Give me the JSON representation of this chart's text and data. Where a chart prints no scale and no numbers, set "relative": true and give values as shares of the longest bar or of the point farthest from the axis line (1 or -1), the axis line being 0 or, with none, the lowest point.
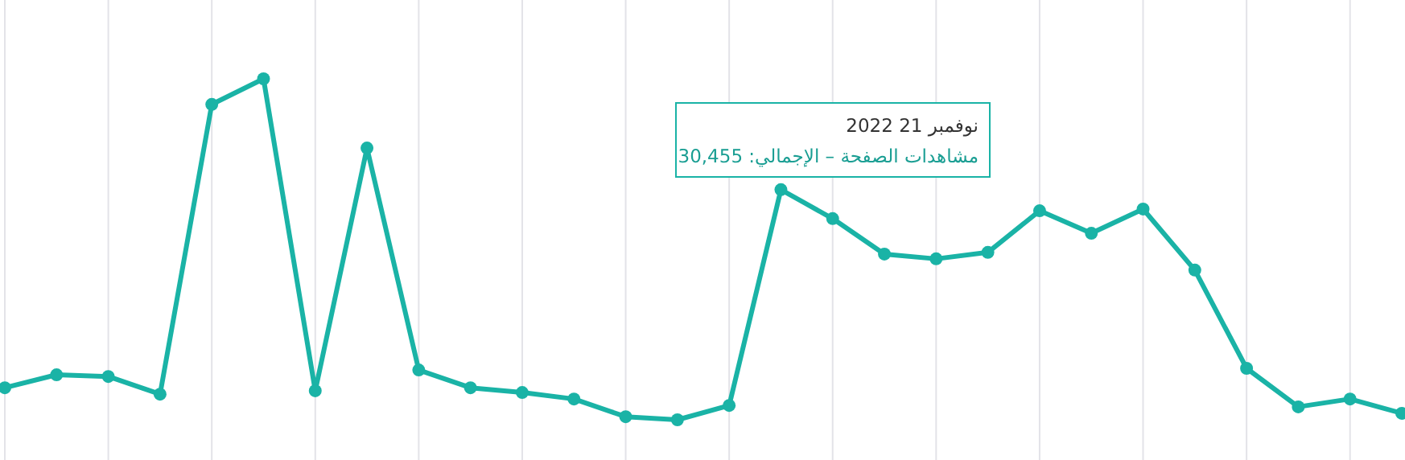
{
  "chart_data": {
    "type": "line",
    "relative": true,
    "categories": [
      null,
      null,
      null,
      null,
      null,
      null,
      null,
      null,
      null,
      null,
      null,
      null,
      null,
      null,
      null,
      null,
      null,
      null,
      null,
      null,
      null,
      null,
      null,
      null,
      null,
      null,
      null,
      null
    ],
    "series": [
      {
        "color": "#1ab3a6",
        "values": [
          0.094,
          0.132,
          0.127,
          0.075,
          0.925,
          1,
          0.085,
          0.797,
          0.146,
          0.094,
          0.08,
          0.061,
          0.009,
          0,
          0.042,
          0.675,
          0.59,
          0.486,
          0.472,
          0.491,
          0.613,
          0.547,
          0.618,
          0.439,
          0.151,
          0.038,
          0.061,
          0.019
        ]
      }
    ],
    "annotations": [
      "نوفمبر 21 2022",
      "مشاهدات الصفحة – الإجمالي: 30,455"
    ],
    "grid": "x",
    "marker": "circle",
    "line_style": "solid"
  }
}
